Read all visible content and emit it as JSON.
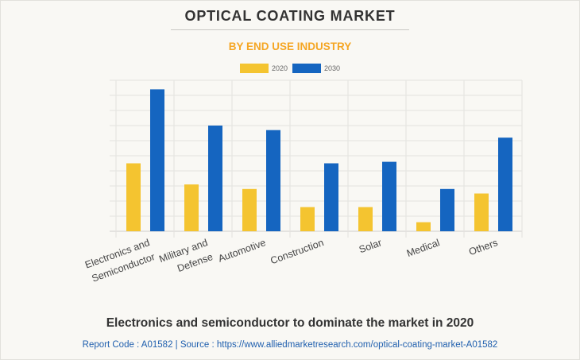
{
  "header": {
    "title": "OPTICAL COATING MARKET",
    "subtitle": "BY END USE INDUSTRY"
  },
  "colors": {
    "series_2020": "#f4c430",
    "series_2030": "#1565c0",
    "subtitle": "#f5a623",
    "source_link": "#1f5fae"
  },
  "chart_data": {
    "type": "bar",
    "title": "OPTICAL COATING MARKET",
    "subtitle": "BY END USE INDUSTRY",
    "xlabel": "",
    "ylabel": "",
    "ylim": [
      0,
      10
    ],
    "y_ticks_labeled": false,
    "grid": true,
    "legend_position": "top-center",
    "categories": [
      "Electronics and Semiconductor",
      "Military and Defense",
      "Automotive",
      "Construction",
      "Solar",
      "Medical",
      "Others"
    ],
    "category_label_lines": [
      [
        "Electronics and",
        "Semiconductor"
      ],
      [
        "Military and",
        "Defense"
      ],
      [
        "Automotive"
      ],
      [
        "Construction"
      ],
      [
        "Solar"
      ],
      [
        "Medical"
      ],
      [
        "Others"
      ]
    ],
    "series": [
      {
        "name": "2020",
        "color": "#f4c430",
        "values": [
          4.5,
          3.1,
          2.8,
          1.6,
          1.6,
          0.6,
          2.5
        ]
      },
      {
        "name": "2030",
        "color": "#1565c0",
        "values": [
          9.4,
          7.0,
          6.7,
          4.5,
          4.6,
          2.8,
          6.2
        ]
      }
    ]
  },
  "footer": {
    "headline": "Electronics and semiconductor to dominate the market in 2020",
    "source": "Report Code : A01582  |  Source : https://www.alliedmarketresearch.com/optical-coating-market-A01582"
  }
}
